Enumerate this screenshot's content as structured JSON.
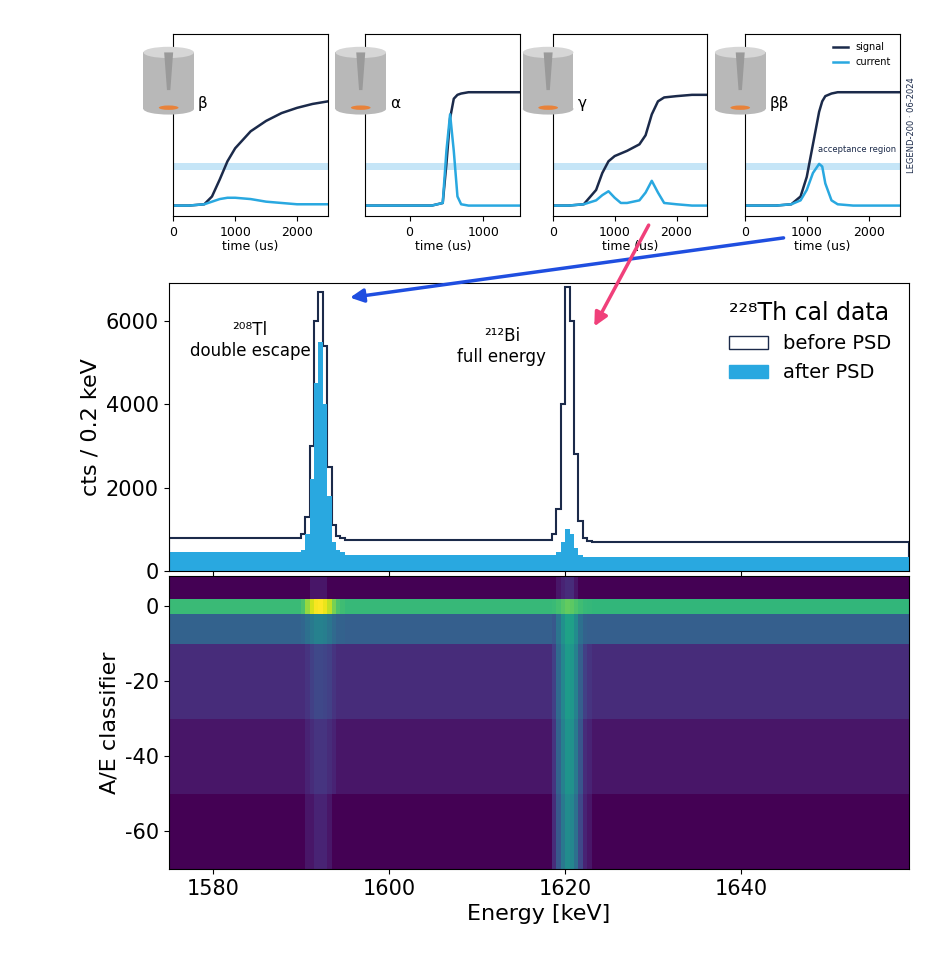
{
  "chart_data": [
    {
      "type": "line",
      "particle": "β",
      "xlabel": "time (us)",
      "x": [
        0,
        250,
        500,
        625,
        750,
        875,
        1000,
        1250,
        1500,
        1750,
        2000,
        2250,
        2500
      ],
      "series": [
        {
          "name": "signal",
          "color": "#1b2a4a",
          "values": [
            0.08,
            0.08,
            0.09,
            0.15,
            0.28,
            0.42,
            0.52,
            0.65,
            0.73,
            0.79,
            0.83,
            0.86,
            0.88
          ]
        },
        {
          "name": "current",
          "color": "#29a8e0",
          "values": [
            0.08,
            0.08,
            0.09,
            0.11,
            0.13,
            0.14,
            0.14,
            0.13,
            0.11,
            0.1,
            0.09,
            0.09,
            0.09
          ]
        }
      ],
      "acceptance_region": [
        0.35,
        0.41
      ],
      "xlim": [
        0,
        2500
      ],
      "xticks": [
        0,
        1000,
        2000
      ],
      "ylim": [
        0,
        1.4
      ],
      "tick_labels": "x"
    },
    {
      "type": "line",
      "particle": "α",
      "xlabel": "time (us)",
      "x": [
        -600,
        -300,
        0,
        300,
        450,
        500,
        550,
        600,
        650,
        700,
        800,
        1000,
        1200,
        1500
      ],
      "series": [
        {
          "name": "signal",
          "color": "#1b2a4a",
          "values": [
            0.08,
            0.08,
            0.08,
            0.08,
            0.1,
            0.4,
            0.75,
            0.9,
            0.93,
            0.94,
            0.95,
            0.95,
            0.95,
            0.95
          ]
        },
        {
          "name": "current",
          "color": "#29a8e0",
          "values": [
            0.08,
            0.08,
            0.08,
            0.08,
            0.1,
            0.5,
            0.78,
            0.5,
            0.15,
            0.09,
            0.08,
            0.08,
            0.08,
            0.08
          ]
        }
      ],
      "acceptance_region": [
        0.35,
        0.41
      ],
      "xlim": [
        -600,
        1500
      ],
      "xticks": [
        0,
        1000
      ],
      "ylim": [
        0,
        1.4
      ],
      "tick_labels": "x"
    },
    {
      "type": "line",
      "particle": "γ",
      "xlabel": "time (us)",
      "x": [
        0,
        250,
        500,
        700,
        800,
        900,
        1000,
        1100,
        1200,
        1400,
        1500,
        1600,
        1700,
        1800,
        2000,
        2250,
        2500
      ],
      "series": [
        {
          "name": "signal",
          "color": "#1b2a4a",
          "values": [
            0.08,
            0.08,
            0.09,
            0.2,
            0.33,
            0.42,
            0.46,
            0.48,
            0.5,
            0.55,
            0.62,
            0.78,
            0.88,
            0.91,
            0.92,
            0.93,
            0.93
          ]
        },
        {
          "name": "current",
          "color": "#29a8e0",
          "values": [
            0.08,
            0.08,
            0.09,
            0.12,
            0.16,
            0.19,
            0.14,
            0.1,
            0.1,
            0.12,
            0.18,
            0.27,
            0.18,
            0.1,
            0.09,
            0.08,
            0.08
          ]
        }
      ],
      "acceptance_region": [
        0.35,
        0.41
      ],
      "xlim": [
        0,
        2500
      ],
      "xticks": [
        0,
        1000,
        2000
      ],
      "ylim": [
        0,
        1.4
      ],
      "tick_labels": "x"
    },
    {
      "type": "line",
      "particle": "ββ",
      "xlabel": "time (us)",
      "x": [
        0,
        250,
        500,
        750,
        900,
        1000,
        1100,
        1200,
        1250,
        1300,
        1400,
        1500,
        1750,
        2000,
        2250,
        2500
      ],
      "series": [
        {
          "name": "signal",
          "color": "#1b2a4a",
          "values": [
            0.08,
            0.08,
            0.08,
            0.09,
            0.15,
            0.3,
            0.55,
            0.8,
            0.88,
            0.92,
            0.94,
            0.95,
            0.95,
            0.95,
            0.95,
            0.95
          ]
        },
        {
          "name": "current",
          "color": "#29a8e0",
          "values": [
            0.08,
            0.08,
            0.08,
            0.09,
            0.12,
            0.2,
            0.33,
            0.4,
            0.38,
            0.25,
            0.12,
            0.09,
            0.08,
            0.08,
            0.08,
            0.08
          ]
        }
      ],
      "acceptance_region": [
        0.35,
        0.41
      ],
      "annotation": "acceptance region",
      "credit": "LEGEND-200 · 06-2024",
      "legend": "upper right",
      "xlim": [
        0,
        2500
      ],
      "xticks": [
        0,
        1000,
        2000
      ],
      "ylim": [
        0,
        1.4
      ],
      "tick_labels": "x"
    },
    {
      "type": "histogram",
      "ylabel": "cts / 0.2 keV",
      "annotations": [
        "²⁰⁸Tl\ndouble escape",
        "²¹²Bi\nfull energy"
      ],
      "legend_title": "²²⁸Th cal data",
      "legend": "upper right",
      "bins": [
        1575,
        1590,
        1590.5,
        1591,
        1591.5,
        1592,
        1592.5,
        1593,
        1593.5,
        1594,
        1594.5,
        1595,
        1618.5,
        1619,
        1619.5,
        1620,
        1620.5,
        1621,
        1621.5,
        1622,
        1622.5,
        1623,
        1659
      ],
      "series": [
        {
          "name": "before PSD",
          "type": "step",
          "color": "#1b2a4a",
          "values": [
            800,
            900,
            1300,
            3000,
            6000,
            6700,
            5400,
            2500,
            1100,
            850,
            800,
            750,
            900,
            1500,
            4000,
            6800,
            6000,
            2800,
            1200,
            800,
            720,
            700
          ]
        },
        {
          "name": "after PSD",
          "type": "bar",
          "color": "#29a8e0",
          "values": [
            450,
            500,
            900,
            2200,
            4500,
            5500,
            4000,
            1800,
            700,
            500,
            450,
            380,
            400,
            450,
            700,
            1000,
            900,
            550,
            400,
            350,
            340,
            330
          ]
        }
      ],
      "xlim": [
        1575,
        1659
      ],
      "xticks": [
        1580,
        1600,
        1620,
        1640
      ],
      "ylim": [
        0,
        6900
      ],
      "yticks": [
        0,
        2000,
        4000,
        6000
      ],
      "tick_labels": "y"
    },
    {
      "type": "heatmap",
      "xlabel": "Energy [keV]",
      "ylabel": "A/E classifier",
      "x_bins": [
        1575,
        1590,
        1590.5,
        1591,
        1591.5,
        1592,
        1592.5,
        1593,
        1593.5,
        1594,
        1594.5,
        1595,
        1618.5,
        1619,
        1619.5,
        1620,
        1620.5,
        1621,
        1621.5,
        1622,
        1622.5,
        1623,
        1659
      ],
      "y_bins": [
        -70,
        -50,
        -30,
        -10,
        -2,
        2,
        8
      ],
      "cells": [
        [
          2,
          2,
          3,
          3,
          4,
          4,
          4,
          3,
          2,
          2,
          2,
          2,
          5,
          15,
          40,
          70,
          60,
          30,
          10,
          4,
          3,
          2
        ],
        [
          3,
          3,
          4,
          5,
          6,
          6,
          6,
          5,
          4,
          3,
          3,
          3,
          6,
          20,
          50,
          90,
          80,
          40,
          14,
          5,
          4,
          3
        ],
        [
          5,
          5,
          6,
          8,
          10,
          10,
          9,
          8,
          6,
          5,
          5,
          5,
          8,
          25,
          60,
          110,
          100,
          50,
          18,
          8,
          6,
          5
        ],
        [
          20,
          22,
          30,
          40,
          50,
          50,
          45,
          35,
          25,
          20,
          20,
          18,
          15,
          35,
          80,
          140,
          130,
          70,
          30,
          20,
          18,
          18
        ],
        [
          300,
          400,
          1000,
          2000,
          3000,
          3200,
          2600,
          1600,
          700,
          400,
          320,
          280,
          300,
          350,
          450,
          550,
          500,
          400,
          320,
          280,
          270,
          260
        ],
        [
          2,
          2,
          2,
          3,
          3,
          3,
          3,
          2,
          2,
          2,
          2,
          2,
          2,
          3,
          4,
          5,
          5,
          3,
          2,
          2,
          2,
          2
        ]
      ],
      "xlim": [
        1575,
        1659
      ],
      "xticks": [
        1580,
        1600,
        1620,
        1640
      ],
      "ylim": [
        -70,
        8
      ],
      "yticks": [
        0,
        -20,
        -40,
        -60
      ]
    }
  ]
}
